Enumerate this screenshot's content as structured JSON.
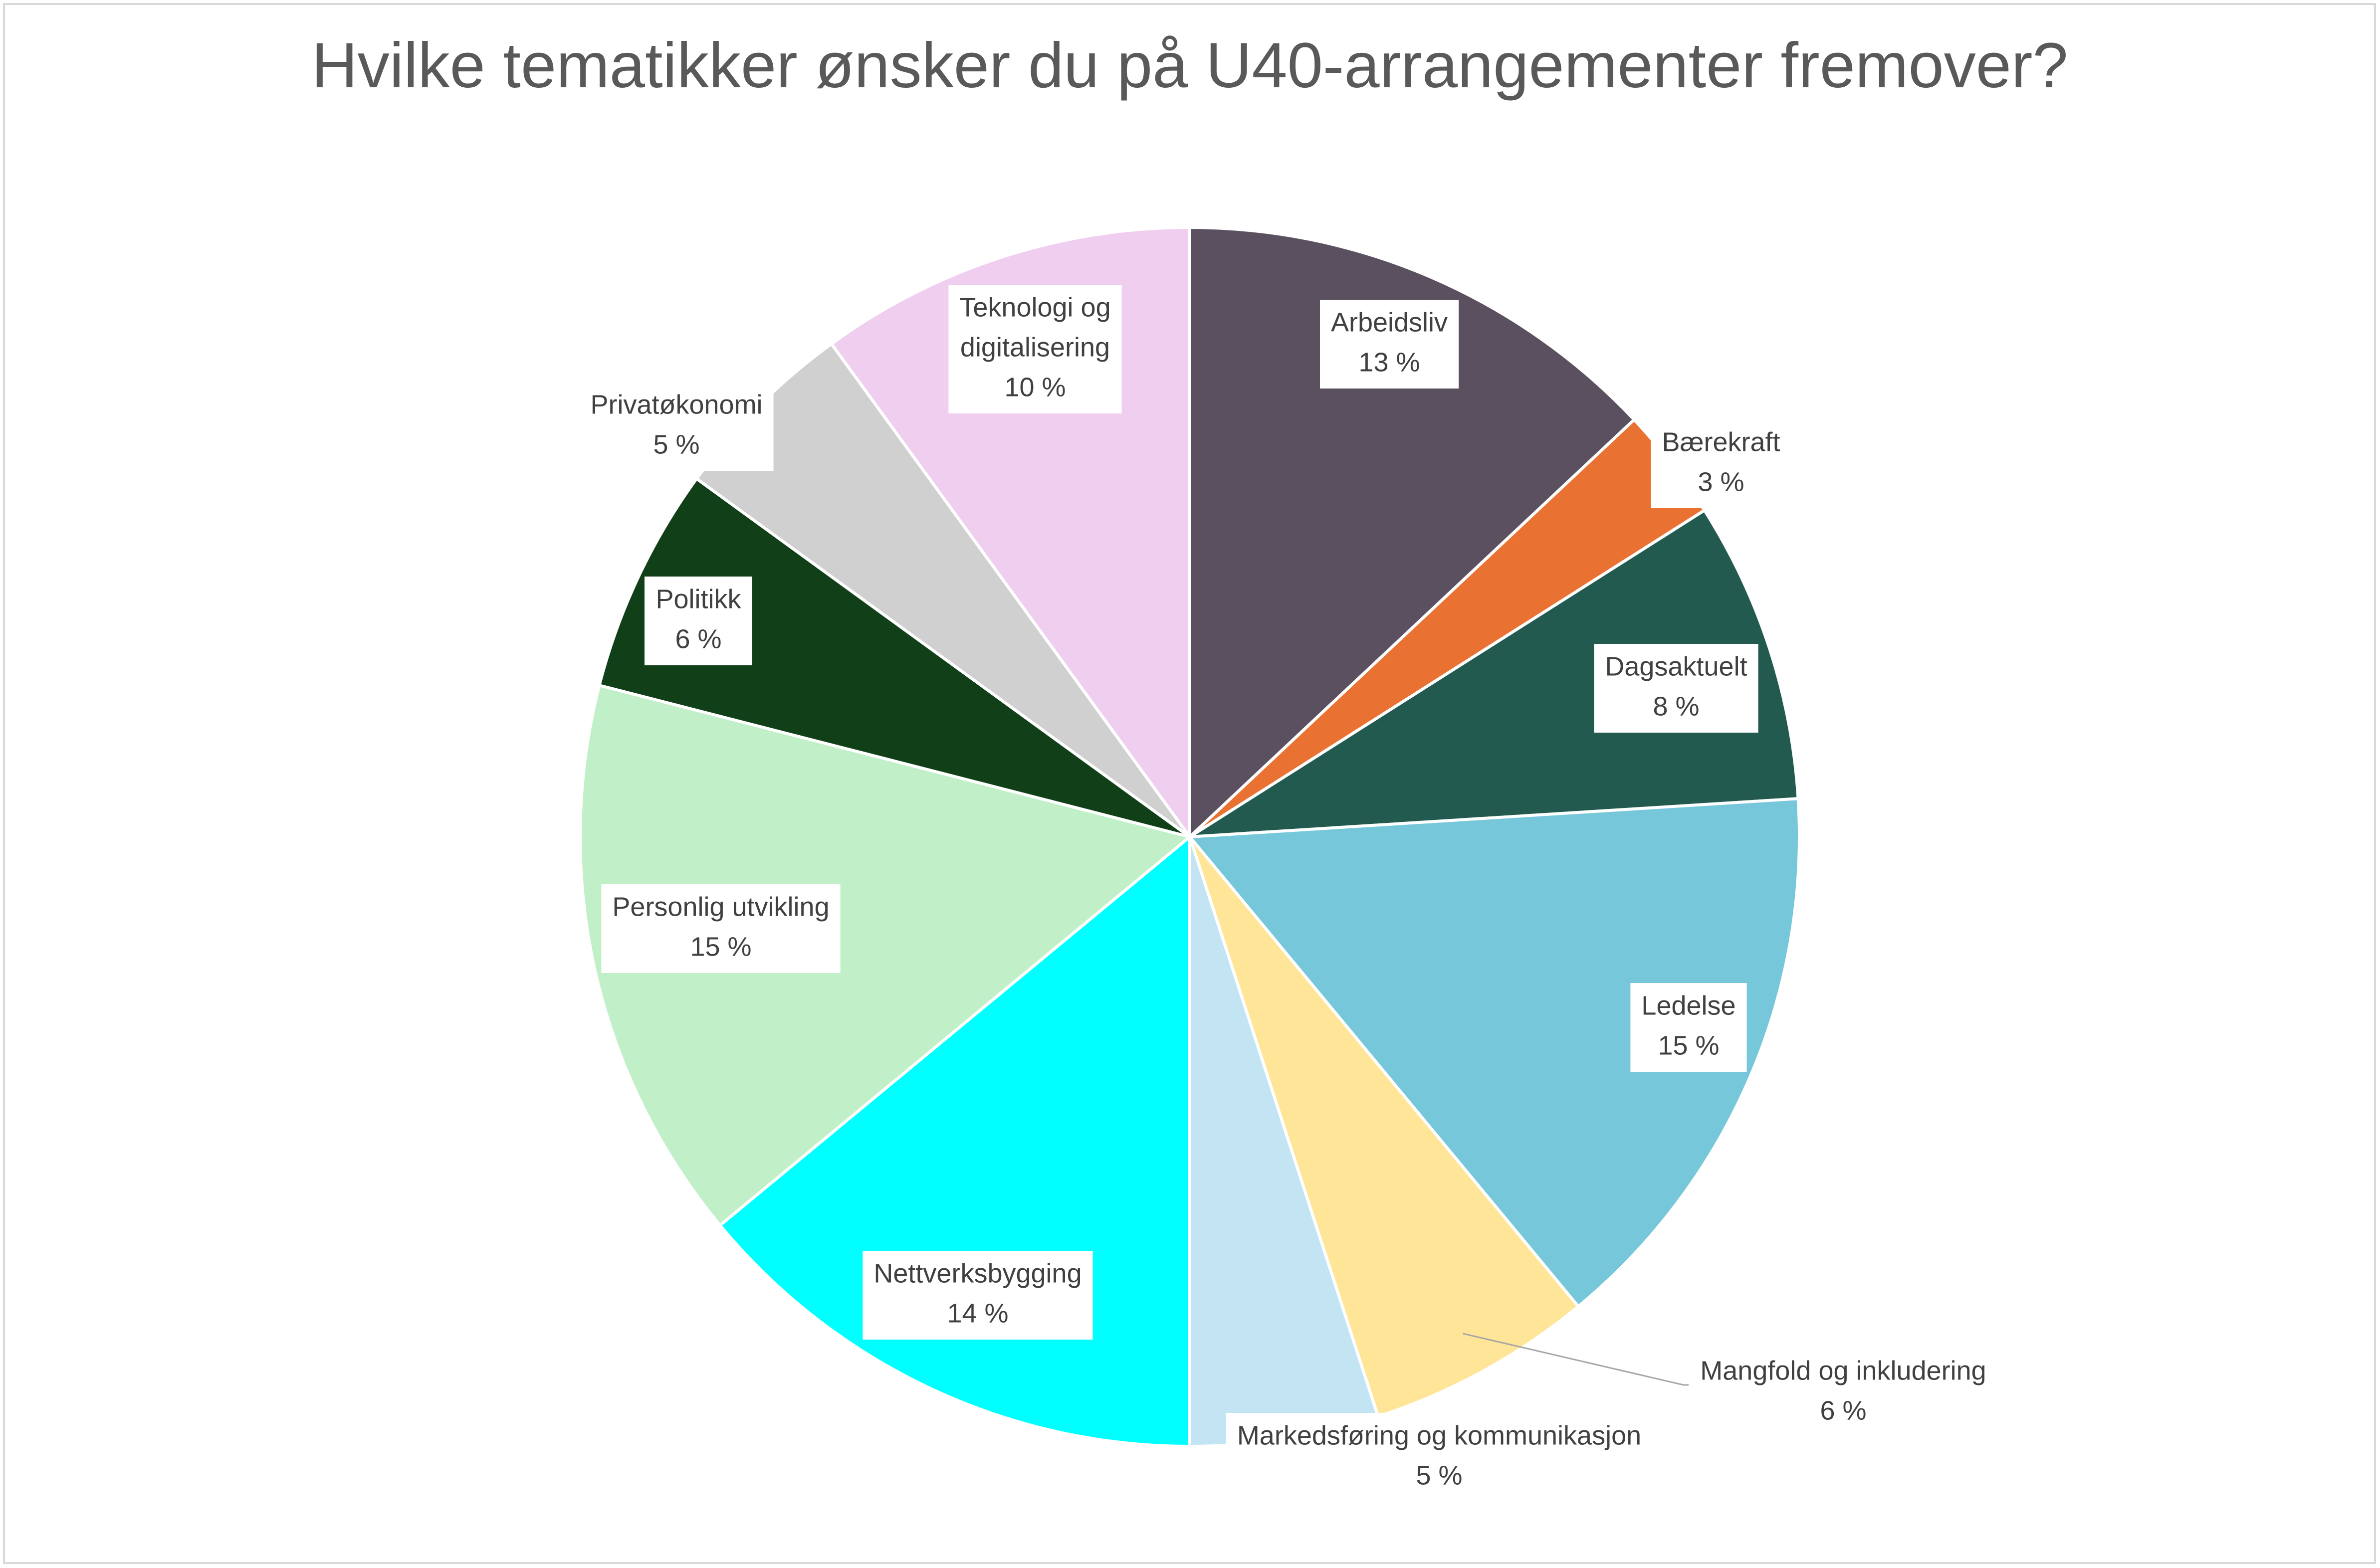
{
  "chart_data": {
    "type": "pie",
    "title": "Hvilke tematikker ønsker du på U40-arrangementer fremover?",
    "start_angle_deg": 0,
    "direction": "clockwise",
    "legend": "none",
    "slices": [
      {
        "category": "Arbeidsliv",
        "value": 13,
        "label": "13 %",
        "color": "#5a505f"
      },
      {
        "category": "Bærekraft",
        "value": 3,
        "label": "3 %",
        "color": "#e97132"
      },
      {
        "category": "Dagsaktuelt",
        "value": 8,
        "label": "8 %",
        "color": "#225a4f"
      },
      {
        "category": "Ledelse",
        "value": 15,
        "label": "15 %",
        "color": "#75c7d9"
      },
      {
        "category": "Mangfold og inkludering",
        "value": 6,
        "label": "6 %",
        "color": "#fee598"
      },
      {
        "category": "Markedsføring og kommunikasjon",
        "value": 5,
        "label": "5 %",
        "color": "#c2e4f3"
      },
      {
        "category": "Nettverksbygging",
        "value": 14,
        "label": "14 %",
        "color": "#00ffff"
      },
      {
        "category": "Personlig utvikling",
        "value": 15,
        "label": "15 %",
        "color": "#c1f0c8"
      },
      {
        "category": "Politikk",
        "value": 6,
        "label": "6 %",
        "color": "#113f18"
      },
      {
        "category": "Privatøkonomi",
        "value": 5,
        "label": "5 %",
        "color": "#d0d0d0"
      },
      {
        "category": "Teknologi og digitalisering",
        "value": 10,
        "label": "10 %",
        "color": "#f0cef0"
      }
    ]
  }
}
